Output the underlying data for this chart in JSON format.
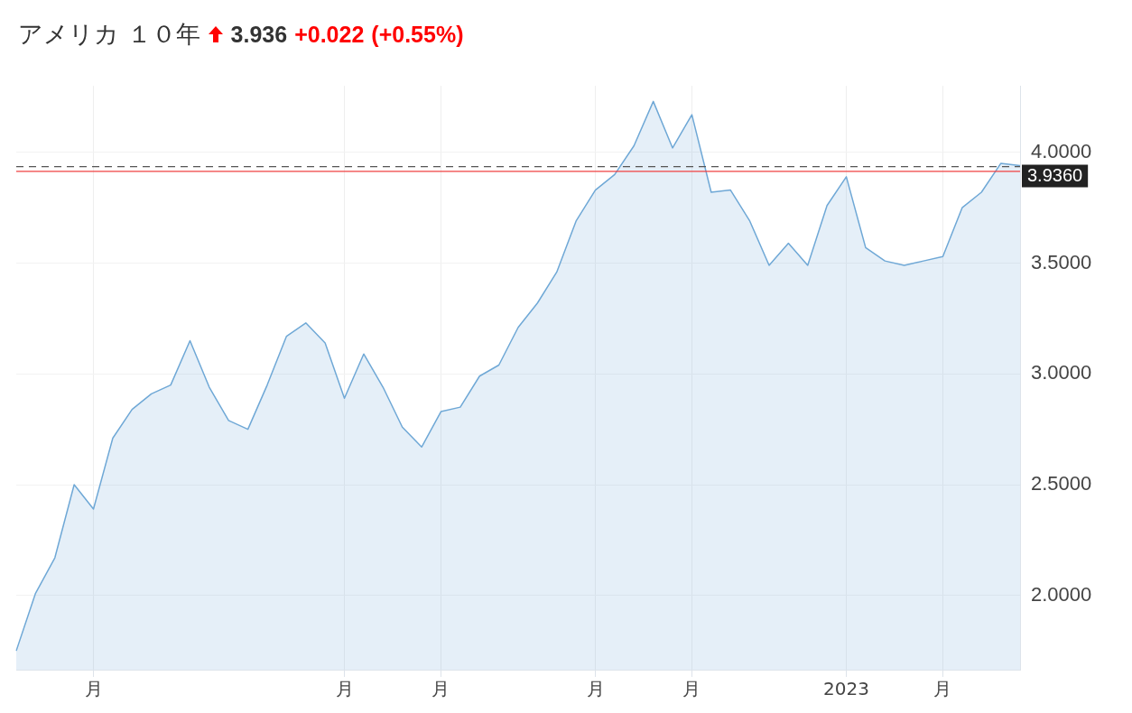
{
  "chart_data": {
    "type": "area",
    "title": "アメリカ １０年",
    "annotations": [
      "3.936",
      "+0.022",
      "(+0.55%)"
    ],
    "categories": [
      null,
      null,
      null,
      null,
      "月",
      null,
      null,
      null,
      null,
      null,
      null,
      null,
      null,
      null,
      null,
      null,
      null,
      "月",
      null,
      null,
      null,
      null,
      "月",
      null,
      null,
      null,
      null,
      null,
      null,
      null,
      "月",
      null,
      null,
      null,
      null,
      "月",
      null,
      null,
      null,
      null,
      null,
      null,
      null,
      "2023",
      null,
      null,
      null,
      null,
      "月",
      null,
      null,
      null,
      null
    ],
    "series": [
      {
        "color": "#6fa8d6",
        "values": [
          1.75,
          2.01,
          2.17,
          2.5,
          2.39,
          2.71,
          2.84,
          2.91,
          2.95,
          3.15,
          2.94,
          2.79,
          2.75,
          2.95,
          3.17,
          3.23,
          3.14,
          2.89,
          3.09,
          2.94,
          2.76,
          2.67,
          2.83,
          2.85,
          2.99,
          3.04,
          3.21,
          3.32,
          3.46,
          3.69,
          3.83,
          3.9,
          4.03,
          4.23,
          4.02,
          4.17,
          3.82,
          3.83,
          3.69,
          3.49,
          3.59,
          3.49,
          3.76,
          3.89,
          3.57,
          3.51,
          3.49,
          3.51,
          3.53,
          3.75,
          3.82,
          3.95,
          3.94
        ]
      }
    ],
    "ylim": [
      1.665,
      4.3
    ],
    "yticks": [
      {
        "value": 2,
        "label": "2.0000"
      },
      {
        "value": 2.5,
        "label": "2.5000"
      },
      {
        "value": 3,
        "label": "3.0000"
      },
      {
        "value": 3.5,
        "label": "3.5000"
      },
      {
        "value": 4,
        "label": "4.0000"
      }
    ],
    "ref_lines": [
      {
        "axis": "y",
        "value": 3.936,
        "label": "3.9360",
        "color": "#555555",
        "line_style": "dashed"
      },
      {
        "axis": "y",
        "value": 3.914,
        "color": "#f04040",
        "line_style": "solid"
      }
    ],
    "grid": true,
    "legend": false
  }
}
